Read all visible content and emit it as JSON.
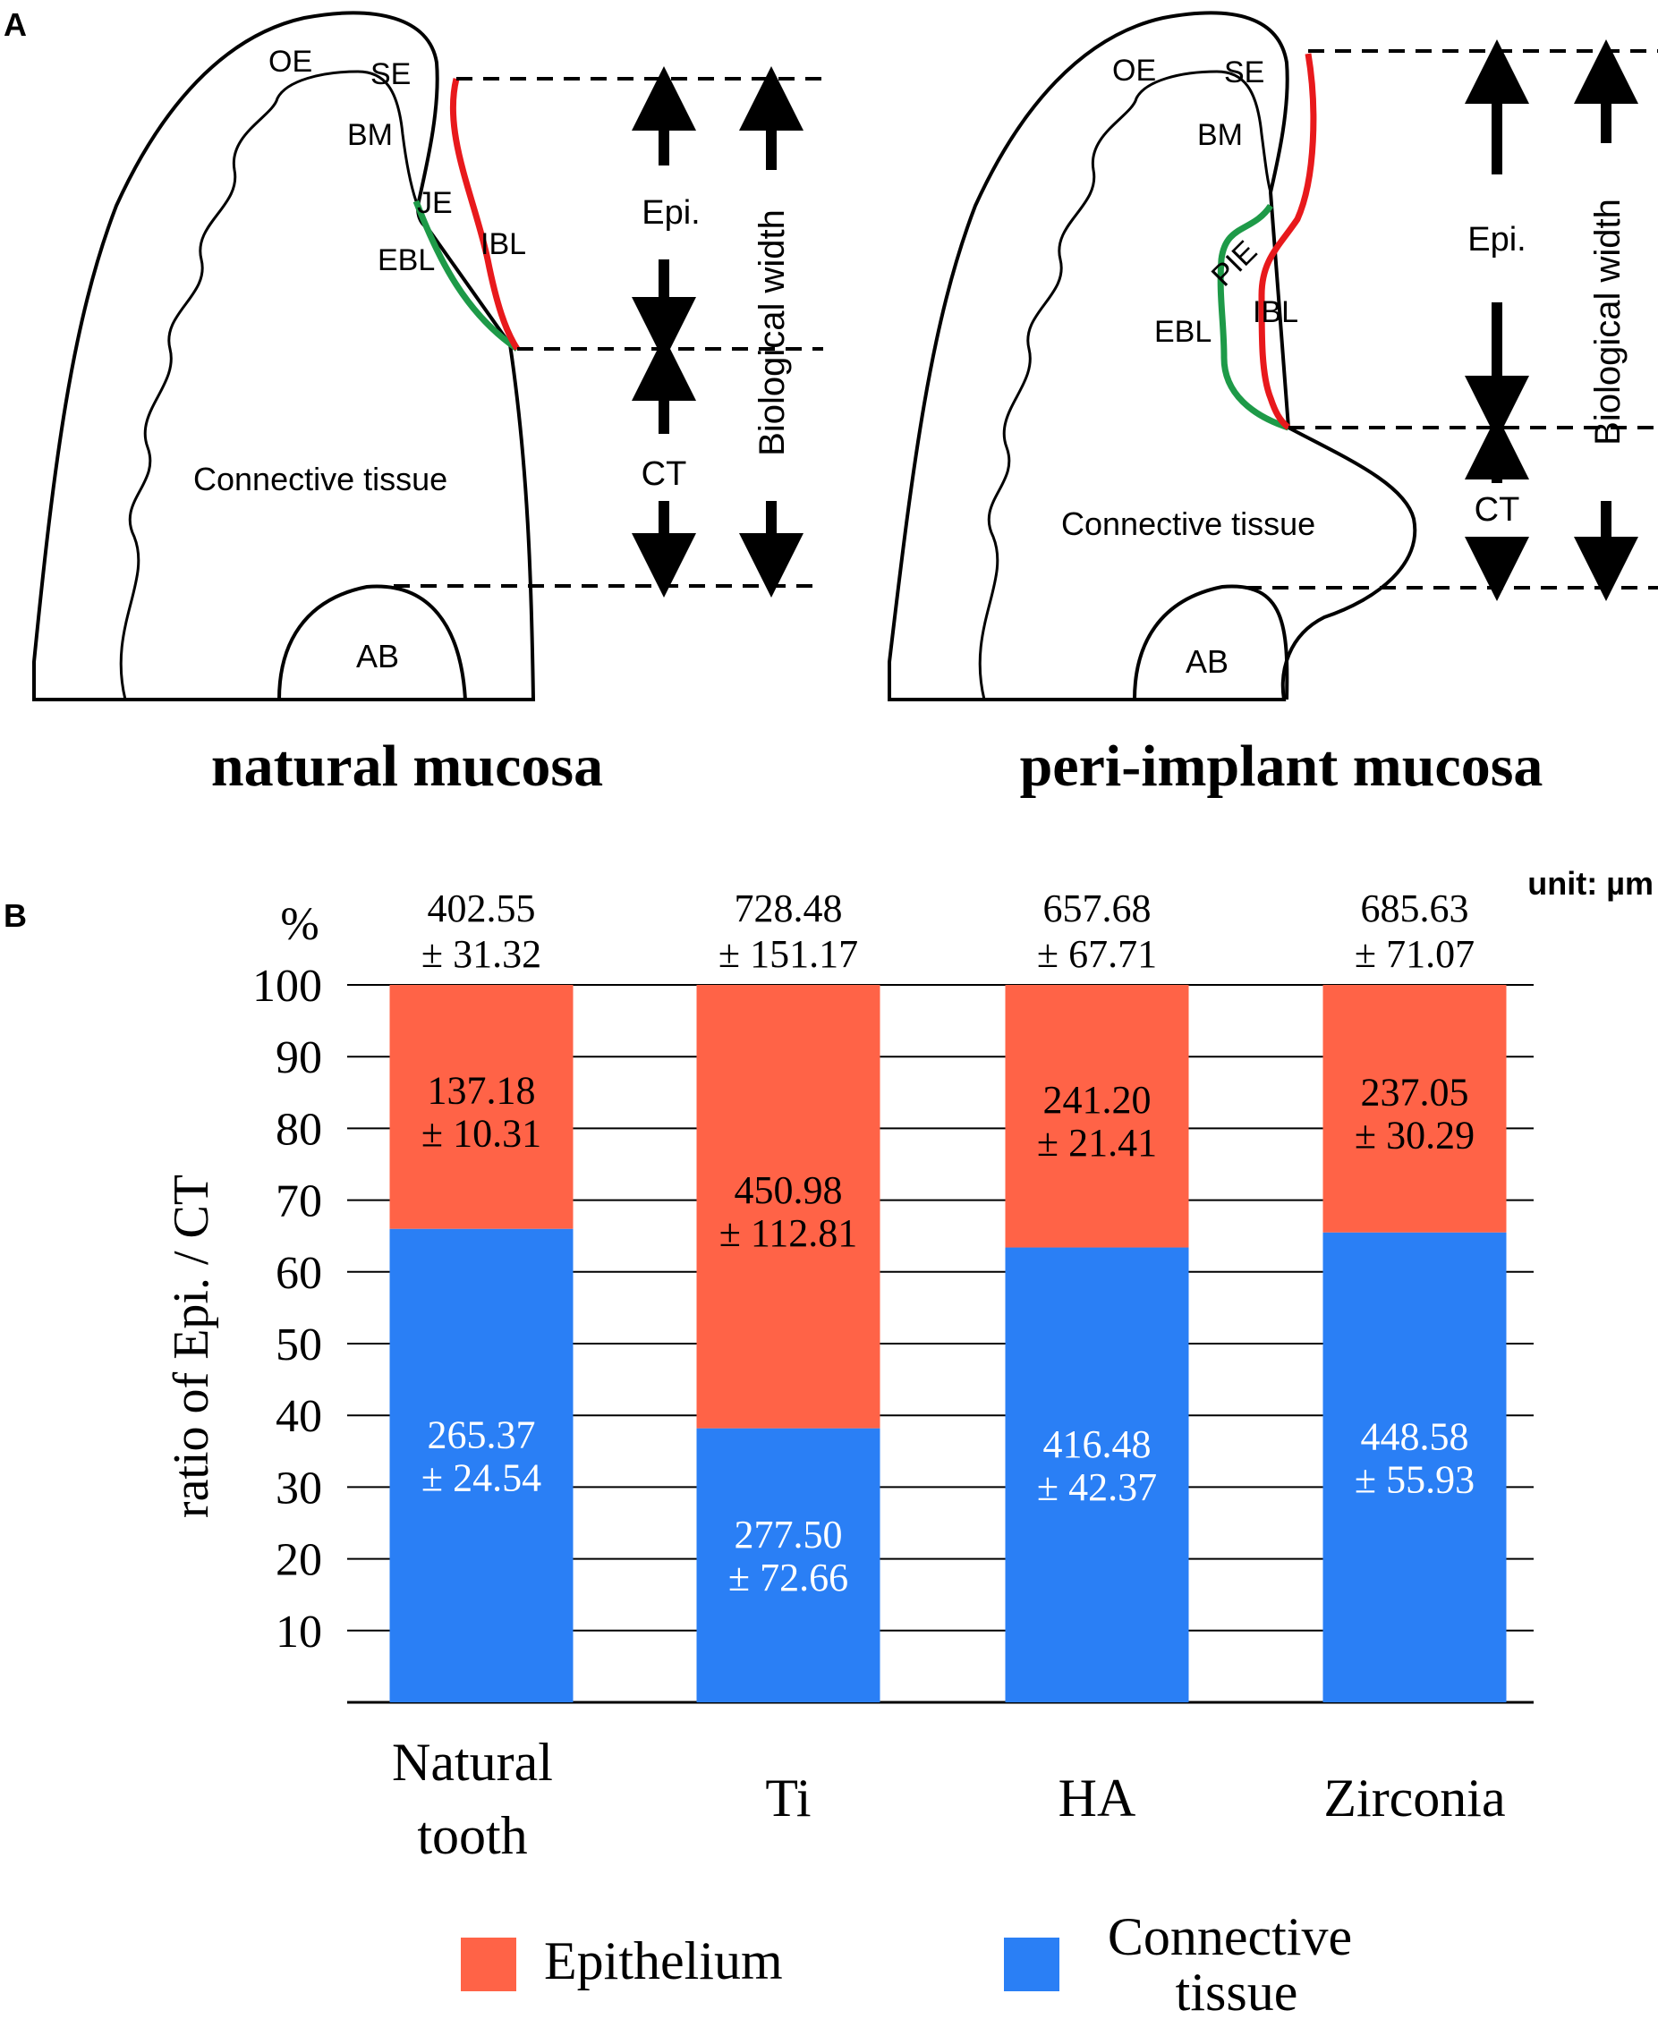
{
  "panel_a": {
    "letter": "A",
    "natural": {
      "caption": "natural mucosa",
      "labels": {
        "oe": "OE",
        "se": "SE",
        "bm": "BM",
        "je": "JE",
        "ebl": "EBL",
        "ibl": "IBL",
        "connective": "Connective tissue",
        "ab": "AB",
        "epi": "Epi.",
        "ct": "CT",
        "bio": "Biological width"
      }
    },
    "implant": {
      "caption": "peri-implant mucosa",
      "labels": {
        "oe": "OE",
        "se": "SE",
        "bm": "BM",
        "pie": "PIE",
        "ebl": "EBL",
        "ibl": "IBL",
        "connective": "Connective tissue",
        "ab": "AB",
        "epi": "Epi.",
        "ct": "CT",
        "bio": "Biological width"
      }
    },
    "colors": {
      "epithelium_line": "#e8191c",
      "basal_line": "#1e9a48"
    }
  },
  "panel_b": {
    "letter": "B",
    "unit_label": "unit: µm",
    "percent_label": "%",
    "legend": [
      {
        "name": "Epithelium",
        "color": "#ff6347"
      },
      {
        "name": "Connective tissue",
        "color": "#2a7ff5"
      }
    ]
  },
  "chart_data": {
    "type": "bar",
    "stacked": true,
    "ylabel": "ratio of Epi. / CT",
    "ylim": [
      0,
      100
    ],
    "yticks": [
      10,
      20,
      30,
      40,
      50,
      60,
      70,
      80,
      90,
      100
    ],
    "grid": true,
    "categories": [
      {
        "line1": "Natural",
        "line2": "tooth"
      },
      {
        "line1": "Ti",
        "line2": ""
      },
      {
        "line1": "HA",
        "line2": ""
      },
      {
        "line1": "Zirconia",
        "line2": ""
      }
    ],
    "totals": [
      {
        "mean": "402.55",
        "sd": "± 31.32"
      },
      {
        "mean": "728.48",
        "sd": "± 151.17"
      },
      {
        "mean": "657.68",
        "sd": "± 67.71"
      },
      {
        "mean": "685.63",
        "sd": "± 71.07"
      }
    ],
    "series": [
      {
        "name": "Connective tissue",
        "color": "#2a7ff5",
        "percent": [
          66,
          38.2,
          63.4,
          65.5
        ],
        "labels": [
          {
            "mean": "265.37",
            "sd": "± 24.54"
          },
          {
            "mean": "277.50",
            "sd": "± 72.66"
          },
          {
            "mean": "416.48",
            "sd": "± 42.37"
          },
          {
            "mean": "448.58",
            "sd": "± 55.93"
          }
        ]
      },
      {
        "name": "Epithelium",
        "color": "#ff6347",
        "percent": [
          34,
          61.8,
          36.6,
          34.5
        ],
        "labels": [
          {
            "mean": "137.18",
            "sd": "± 10.31"
          },
          {
            "mean": "450.98",
            "sd": "± 112.81"
          },
          {
            "mean": "241.20",
            "sd": "± 21.41"
          },
          {
            "mean": "237.05",
            "sd": "± 30.29"
          }
        ]
      }
    ]
  }
}
